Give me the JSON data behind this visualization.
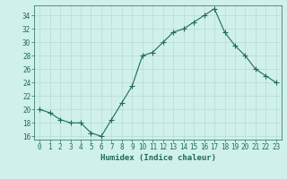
{
  "x": [
    0,
    1,
    2,
    3,
    4,
    5,
    6,
    7,
    8,
    9,
    10,
    11,
    12,
    13,
    14,
    15,
    16,
    17,
    18,
    19,
    20,
    21,
    22,
    23
  ],
  "y": [
    20,
    19.5,
    18.5,
    18,
    18,
    16.5,
    16,
    18.5,
    21,
    23.5,
    28,
    28.5,
    30,
    31.5,
    32,
    33,
    34,
    35,
    31.5,
    29.5,
    28,
    26,
    25,
    24
  ],
  "line_color": "#1f6b5a",
  "marker": "+",
  "marker_size": 4,
  "bg_color": "#cff0eb",
  "grid_color": "#b8dbd5",
  "xlabel": "Humidex (Indice chaleur)",
  "ylim": [
    15.5,
    35.5
  ],
  "yticks": [
    16,
    18,
    20,
    22,
    24,
    26,
    28,
    30,
    32,
    34
  ],
  "xlim": [
    -0.5,
    23.5
  ],
  "xticks": [
    0,
    1,
    2,
    3,
    4,
    5,
    6,
    7,
    8,
    9,
    10,
    11,
    12,
    13,
    14,
    15,
    16,
    17,
    18,
    19,
    20,
    21,
    22,
    23
  ],
  "xlabel_fontsize": 6.5,
  "tick_fontsize": 5.5,
  "label_color": "#1f6b5a",
  "linewidth": 0.8
}
